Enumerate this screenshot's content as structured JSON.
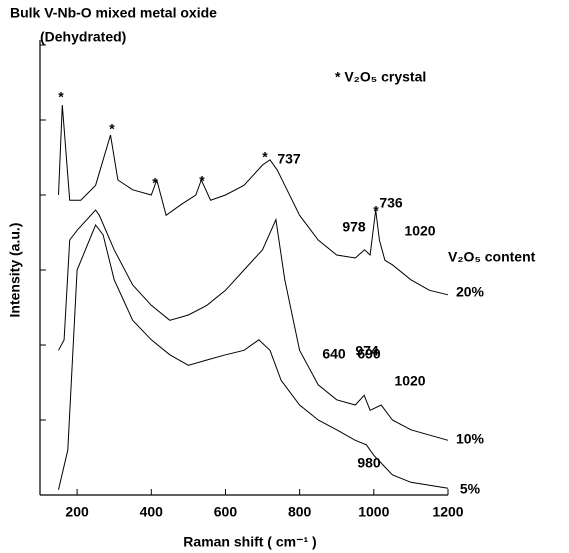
{
  "chart_data": {
    "type": "line",
    "title": "Bulk V-Nb-O mixed metal oxide",
    "subtitle": "(Dehydrated)",
    "xlabel": "Raman shift ( cm⁻¹ )",
    "ylabel": "Intensity (a.u.)",
    "legend_title": "V₂O₅ content",
    "note": "* V₂O₅ crystal",
    "xlim": [
      100,
      1200
    ],
    "xticks": [
      200,
      400,
      600,
      800,
      1000,
      1200
    ],
    "ylim": [
      0,
      6.1
    ],
    "yticks": [
      1,
      2,
      3,
      4,
      5,
      6
    ],
    "color": "#000000",
    "annotations": [
      "*",
      "*",
      "*",
      "*",
      "*",
      "737",
      "978",
      "*",
      "1020",
      "736",
      "974",
      "1020",
      "640",
      "690",
      "980"
    ],
    "series": [
      {
        "name": "20%",
        "x": [
          150,
          160,
          180,
          210,
          250,
          290,
          310,
          350,
          400,
          415,
          440,
          480,
          520,
          535,
          560,
          600,
          650,
          700,
          720,
          740,
          760,
          800,
          850,
          900,
          950,
          975,
          990,
          1005,
          1015,
          1030,
          1050,
          1100,
          1150,
          1200
        ],
        "values": [
          4.0,
          5.2,
          3.93,
          3.93,
          4.13,
          4.8,
          4.2,
          4.07,
          4.0,
          4.2,
          3.73,
          3.87,
          4.0,
          4.2,
          3.93,
          4.0,
          4.13,
          4.4,
          4.47,
          4.33,
          4.13,
          3.73,
          3.4,
          3.2,
          3.16,
          3.27,
          3.2,
          3.8,
          3.4,
          3.13,
          3.07,
          2.87,
          2.73,
          2.67
        ]
      },
      {
        "name": "10%",
        "x": [
          150,
          165,
          180,
          200,
          250,
          260,
          300,
          350,
          400,
          450,
          500,
          550,
          600,
          650,
          700,
          736,
          760,
          800,
          850,
          900,
          950,
          974,
          990,
          1020,
          1050,
          1100,
          1200
        ],
        "values": [
          1.93,
          2.07,
          3.4,
          3.53,
          3.8,
          3.73,
          3.27,
          2.8,
          2.53,
          2.33,
          2.4,
          2.53,
          2.73,
          3.0,
          3.27,
          3.67,
          2.87,
          1.93,
          1.47,
          1.27,
          1.2,
          1.33,
          1.13,
          1.2,
          1.0,
          0.87,
          0.73
        ]
      },
      {
        "name": "5%",
        "x": [
          150,
          175,
          200,
          250,
          270,
          300,
          350,
          400,
          450,
          500,
          550,
          600,
          650,
          690,
          720,
          750,
          800,
          850,
          900,
          950,
          980,
          1000,
          1050,
          1100,
          1200
        ],
        "values": [
          0.07,
          0.6,
          3.0,
          3.6,
          3.47,
          2.87,
          2.33,
          2.07,
          1.87,
          1.73,
          1.8,
          1.87,
          1.93,
          2.07,
          1.93,
          1.53,
          1.2,
          1.0,
          0.87,
          0.73,
          0.67,
          0.53,
          0.27,
          0.17,
          0.09
        ]
      }
    ]
  }
}
